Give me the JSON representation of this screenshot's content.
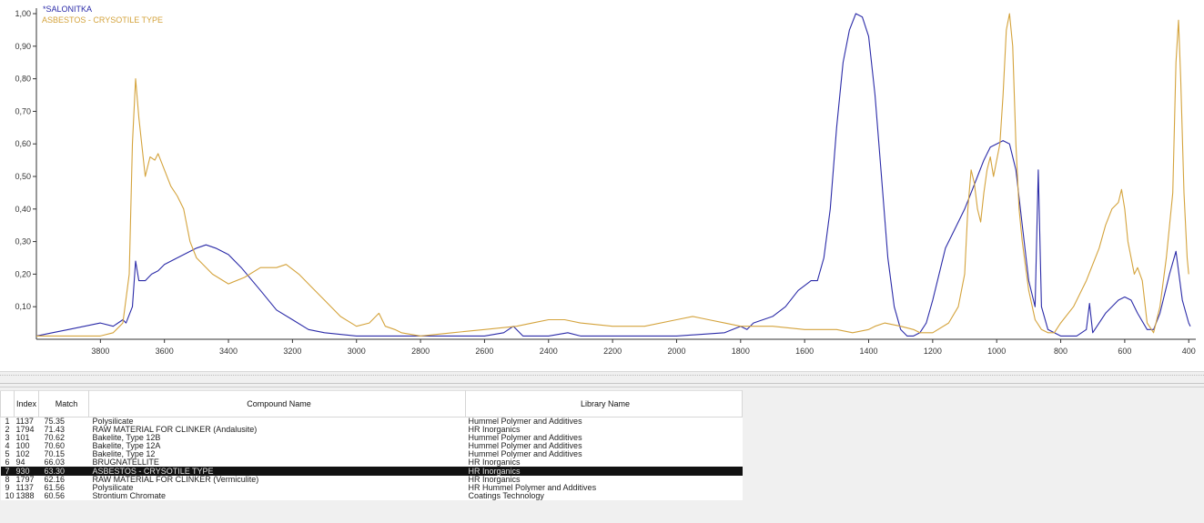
{
  "chart_data": {
    "type": "line",
    "xlabel": "",
    "ylabel": "",
    "xlim": [
      4000,
      395
    ],
    "ylim": [
      0,
      1.0
    ],
    "x_reversed": true,
    "x_ticks": [
      3800,
      3600,
      3400,
      3200,
      3000,
      2800,
      2600,
      2400,
      2200,
      2000,
      1800,
      1600,
      1400,
      1200,
      1000,
      800,
      600,
      400
    ],
    "y_ticks": [
      "0,10",
      "0,20",
      "0,30",
      "0,40",
      "0,50",
      "0,60",
      "0,70",
      "0,80",
      "0,90",
      "1,00"
    ],
    "y_tick_values": [
      0.1,
      0.2,
      0.3,
      0.4,
      0.5,
      0.6,
      0.7,
      0.8,
      0.9,
      1.0
    ],
    "legend_position": "top-left",
    "grid": false,
    "series": [
      {
        "name": "*SALONITKA",
        "color": "#2b2ba8",
        "points": [
          [
            4000,
            0.01
          ],
          [
            3950,
            0.02
          ],
          [
            3900,
            0.03
          ],
          [
            3850,
            0.04
          ],
          [
            3800,
            0.05
          ],
          [
            3760,
            0.04
          ],
          [
            3730,
            0.06
          ],
          [
            3720,
            0.05
          ],
          [
            3700,
            0.1
          ],
          [
            3690,
            0.24
          ],
          [
            3680,
            0.18
          ],
          [
            3660,
            0.18
          ],
          [
            3640,
            0.2
          ],
          [
            3620,
            0.21
          ],
          [
            3600,
            0.23
          ],
          [
            3560,
            0.25
          ],
          [
            3500,
            0.28
          ],
          [
            3470,
            0.29
          ],
          [
            3440,
            0.28
          ],
          [
            3400,
            0.26
          ],
          [
            3360,
            0.22
          ],
          [
            3300,
            0.15
          ],
          [
            3250,
            0.09
          ],
          [
            3200,
            0.06
          ],
          [
            3150,
            0.03
          ],
          [
            3100,
            0.02
          ],
          [
            3000,
            0.01
          ],
          [
            2800,
            0.01
          ],
          [
            2600,
            0.01
          ],
          [
            2540,
            0.02
          ],
          [
            2510,
            0.04
          ],
          [
            2480,
            0.01
          ],
          [
            2400,
            0.01
          ],
          [
            2340,
            0.02
          ],
          [
            2300,
            0.01
          ],
          [
            2000,
            0.01
          ],
          [
            1850,
            0.02
          ],
          [
            1800,
            0.04
          ],
          [
            1780,
            0.03
          ],
          [
            1760,
            0.05
          ],
          [
            1700,
            0.07
          ],
          [
            1660,
            0.1
          ],
          [
            1620,
            0.15
          ],
          [
            1580,
            0.18
          ],
          [
            1560,
            0.18
          ],
          [
            1540,
            0.25
          ],
          [
            1520,
            0.4
          ],
          [
            1500,
            0.65
          ],
          [
            1480,
            0.85
          ],
          [
            1460,
            0.95
          ],
          [
            1440,
            1.0
          ],
          [
            1420,
            0.99
          ],
          [
            1400,
            0.93
          ],
          [
            1380,
            0.75
          ],
          [
            1360,
            0.5
          ],
          [
            1340,
            0.25
          ],
          [
            1320,
            0.1
          ],
          [
            1300,
            0.03
          ],
          [
            1280,
            0.01
          ],
          [
            1260,
            0.01
          ],
          [
            1240,
            0.02
          ],
          [
            1220,
            0.05
          ],
          [
            1200,
            0.12
          ],
          [
            1180,
            0.2
          ],
          [
            1160,
            0.28
          ],
          [
            1140,
            0.32
          ],
          [
            1120,
            0.36
          ],
          [
            1100,
            0.4
          ],
          [
            1080,
            0.45
          ],
          [
            1060,
            0.5
          ],
          [
            1040,
            0.55
          ],
          [
            1020,
            0.59
          ],
          [
            1000,
            0.6
          ],
          [
            980,
            0.61
          ],
          [
            960,
            0.6
          ],
          [
            940,
            0.52
          ],
          [
            920,
            0.35
          ],
          [
            900,
            0.18
          ],
          [
            880,
            0.1
          ],
          [
            870,
            0.52
          ],
          [
            860,
            0.1
          ],
          [
            840,
            0.03
          ],
          [
            800,
            0.01
          ],
          [
            750,
            0.01
          ],
          [
            720,
            0.03
          ],
          [
            710,
            0.11
          ],
          [
            700,
            0.02
          ],
          [
            680,
            0.05
          ],
          [
            660,
            0.08
          ],
          [
            640,
            0.1
          ],
          [
            620,
            0.12
          ],
          [
            600,
            0.13
          ],
          [
            580,
            0.12
          ],
          [
            560,
            0.08
          ],
          [
            530,
            0.03
          ],
          [
            510,
            0.03
          ],
          [
            490,
            0.08
          ],
          [
            460,
            0.2
          ],
          [
            440,
            0.27
          ],
          [
            420,
            0.12
          ],
          [
            400,
            0.05
          ],
          [
            395,
            0.04
          ]
        ]
      },
      {
        "name": "ASBESTOS - CRYSOTILE TYPE",
        "color": "#d4a33c",
        "points": [
          [
            4000,
            0.01
          ],
          [
            3800,
            0.01
          ],
          [
            3760,
            0.02
          ],
          [
            3730,
            0.05
          ],
          [
            3710,
            0.2
          ],
          [
            3700,
            0.6
          ],
          [
            3690,
            0.8
          ],
          [
            3680,
            0.68
          ],
          [
            3660,
            0.5
          ],
          [
            3645,
            0.56
          ],
          [
            3630,
            0.55
          ],
          [
            3620,
            0.57
          ],
          [
            3600,
            0.52
          ],
          [
            3580,
            0.47
          ],
          [
            3560,
            0.44
          ],
          [
            3540,
            0.4
          ],
          [
            3520,
            0.3
          ],
          [
            3500,
            0.25
          ],
          [
            3450,
            0.2
          ],
          [
            3400,
            0.17
          ],
          [
            3350,
            0.19
          ],
          [
            3300,
            0.22
          ],
          [
            3250,
            0.22
          ],
          [
            3220,
            0.23
          ],
          [
            3180,
            0.2
          ],
          [
            3140,
            0.16
          ],
          [
            3100,
            0.12
          ],
          [
            3050,
            0.07
          ],
          [
            3000,
            0.04
          ],
          [
            2960,
            0.05
          ],
          [
            2930,
            0.08
          ],
          [
            2910,
            0.04
          ],
          [
            2880,
            0.03
          ],
          [
            2860,
            0.02
          ],
          [
            2800,
            0.01
          ],
          [
            2700,
            0.02
          ],
          [
            2600,
            0.03
          ],
          [
            2500,
            0.04
          ],
          [
            2450,
            0.05
          ],
          [
            2400,
            0.06
          ],
          [
            2350,
            0.06
          ],
          [
            2300,
            0.05
          ],
          [
            2200,
            0.04
          ],
          [
            2100,
            0.04
          ],
          [
            2000,
            0.06
          ],
          [
            1950,
            0.07
          ],
          [
            1900,
            0.06
          ],
          [
            1850,
            0.05
          ],
          [
            1800,
            0.04
          ],
          [
            1700,
            0.04
          ],
          [
            1600,
            0.03
          ],
          [
            1500,
            0.03
          ],
          [
            1450,
            0.02
          ],
          [
            1400,
            0.03
          ],
          [
            1380,
            0.04
          ],
          [
            1350,
            0.05
          ],
          [
            1300,
            0.04
          ],
          [
            1260,
            0.03
          ],
          [
            1240,
            0.02
          ],
          [
            1200,
            0.02
          ],
          [
            1150,
            0.05
          ],
          [
            1120,
            0.1
          ],
          [
            1100,
            0.2
          ],
          [
            1090,
            0.4
          ],
          [
            1080,
            0.52
          ],
          [
            1070,
            0.48
          ],
          [
            1060,
            0.4
          ],
          [
            1050,
            0.36
          ],
          [
            1040,
            0.45
          ],
          [
            1030,
            0.52
          ],
          [
            1020,
            0.56
          ],
          [
            1010,
            0.5
          ],
          [
            1000,
            0.55
          ],
          [
            990,
            0.6
          ],
          [
            980,
            0.75
          ],
          [
            970,
            0.95
          ],
          [
            960,
            1.0
          ],
          [
            950,
            0.9
          ],
          [
            940,
            0.6
          ],
          [
            930,
            0.4
          ],
          [
            920,
            0.3
          ],
          [
            900,
            0.15
          ],
          [
            880,
            0.06
          ],
          [
            860,
            0.03
          ],
          [
            840,
            0.02
          ],
          [
            820,
            0.02
          ],
          [
            800,
            0.05
          ],
          [
            760,
            0.1
          ],
          [
            720,
            0.18
          ],
          [
            680,
            0.28
          ],
          [
            660,
            0.35
          ],
          [
            640,
            0.4
          ],
          [
            620,
            0.42
          ],
          [
            610,
            0.46
          ],
          [
            600,
            0.4
          ],
          [
            590,
            0.3
          ],
          [
            580,
            0.25
          ],
          [
            570,
            0.2
          ],
          [
            560,
            0.22
          ],
          [
            545,
            0.18
          ],
          [
            530,
            0.05
          ],
          [
            510,
            0.02
          ],
          [
            490,
            0.1
          ],
          [
            470,
            0.25
          ],
          [
            450,
            0.45
          ],
          [
            440,
            0.85
          ],
          [
            432,
            0.98
          ],
          [
            425,
            0.8
          ],
          [
            415,
            0.45
          ],
          [
            405,
            0.25
          ],
          [
            400,
            0.2
          ]
        ]
      }
    ]
  },
  "results": {
    "headers": [
      "Index",
      "Match",
      "Compound Name",
      "Library Name"
    ],
    "rows": [
      {
        "num": "1",
        "index": "1137",
        "match": "75.35",
        "name": "Polysilicate",
        "library": "Hummel Polymer and Additives"
      },
      {
        "num": "2",
        "index": "1794",
        "match": "71.43",
        "name": "RAW MATERIAL FOR CLINKER (Andalusite)",
        "library": "HR Inorganics"
      },
      {
        "num": "3",
        "index": "101",
        "match": "70.62",
        "name": "Bakelite, Type 12B",
        "library": "Hummel Polymer and Additives"
      },
      {
        "num": "4",
        "index": "100",
        "match": "70.60",
        "name": "Bakelite, Type 12A",
        "library": "Hummel Polymer and Additives"
      },
      {
        "num": "5",
        "index": "102",
        "match": "70.15",
        "name": "Bakelite, Type 12",
        "library": "Hummel Polymer and Additives"
      },
      {
        "num": "6",
        "index": "94",
        "match": "66.03",
        "name": "BRUGNATELLITE",
        "library": "HR Inorganics"
      },
      {
        "num": "7",
        "index": "930",
        "match": "63.30",
        "name": "ASBESTOS - CRYSOTILE TYPE",
        "library": "HR Inorganics",
        "selected": true
      },
      {
        "num": "8",
        "index": "1797",
        "match": "62.16",
        "name": "RAW MATERIAL FOR CLINKER (Vermiculite)",
        "library": "HR Inorganics"
      },
      {
        "num": "9",
        "index": "1137",
        "match": "61.56",
        "name": "Polysilicate",
        "library": "HR Hummel Polymer and Additives"
      },
      {
        "num": "10",
        "index": "1388",
        "match": "60.56",
        "name": "Strontium Chromate",
        "library": "Coatings Technology"
      }
    ]
  }
}
